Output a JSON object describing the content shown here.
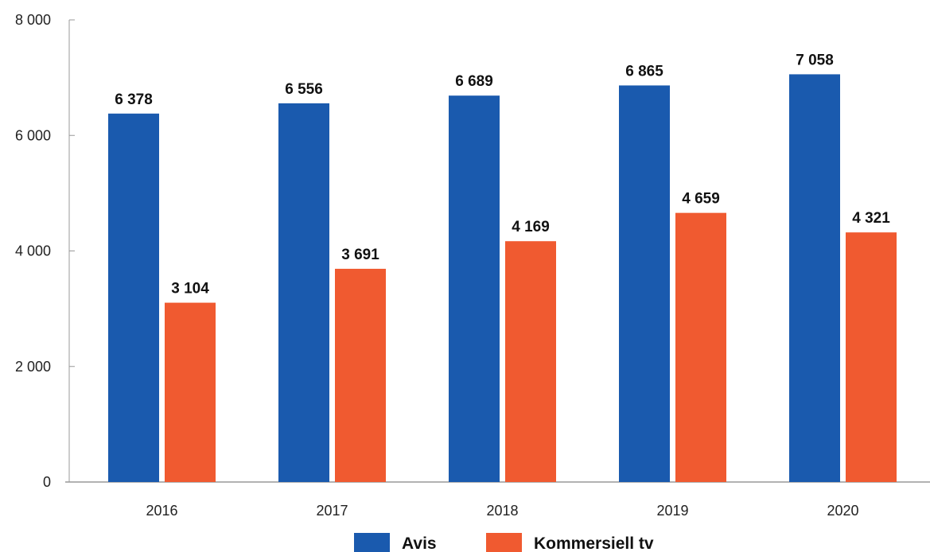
{
  "chart_data": {
    "type": "bar",
    "categories": [
      "2016",
      "2017",
      "2018",
      "2019",
      "2020"
    ],
    "series": [
      {
        "name": "Avis",
        "values": [
          6378,
          6556,
          6689,
          6865,
          7058
        ],
        "labels": [
          "6 378",
          "6 556",
          "6 689",
          "6 865",
          "7 058"
        ],
        "color": "#1a5aae"
      },
      {
        "name": "Kommersiell tv",
        "values": [
          3104,
          3691,
          4169,
          4659,
          4321
        ],
        "labels": [
          "3 104",
          "3 691",
          "4 169",
          "4 659",
          "4 321"
        ],
        "color": "#f05a30"
      }
    ],
    "yticks": [
      0,
      2000,
      4000,
      6000,
      8000
    ],
    "ytick_labels": [
      "0",
      "2 000",
      "4 000",
      "6 000",
      "8 000"
    ],
    "ylim": [
      0,
      8000
    ],
    "grid": false,
    "legend_position": "bottom-center",
    "title": "",
    "xlabel": "",
    "ylabel": ""
  }
}
